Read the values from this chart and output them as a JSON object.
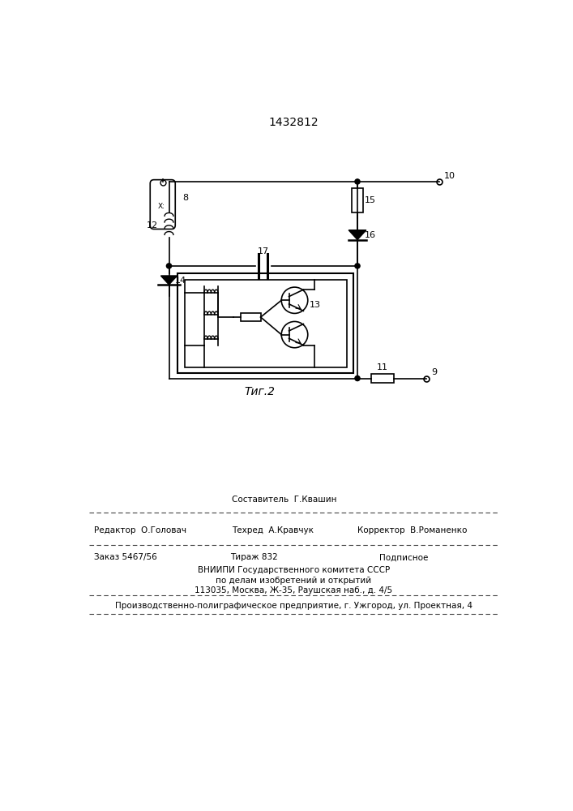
{
  "title": "1432812",
  "fig_caption": "Τиг.2",
  "bg_color": "#ffffff",
  "line_color": "#000000",
  "footer_sestavitel": "Составитель  Г.Квашин",
  "footer_redaktor": "Редактор  О.Головач",
  "footer_tehred": "Техред  А.Кравчук",
  "footer_korrektor": "Корректор  В.Романенко",
  "footer_zakaz": "Заказ 5467/56",
  "footer_tirazh": "Тираж 832",
  "footer_podpisnoe": "Подписное",
  "footer_vnipi": "ВНИИПИ Государственного комитета СССР",
  "footer_vnipi2": "по делам изобретений и открытий",
  "footer_addr": "113035, Москва, Ж-35, Раушская наб., д. 4/5",
  "footer_last": "Производственно-полиграфическое предприятие, г. Ужгород, ул. Проектная, 4"
}
